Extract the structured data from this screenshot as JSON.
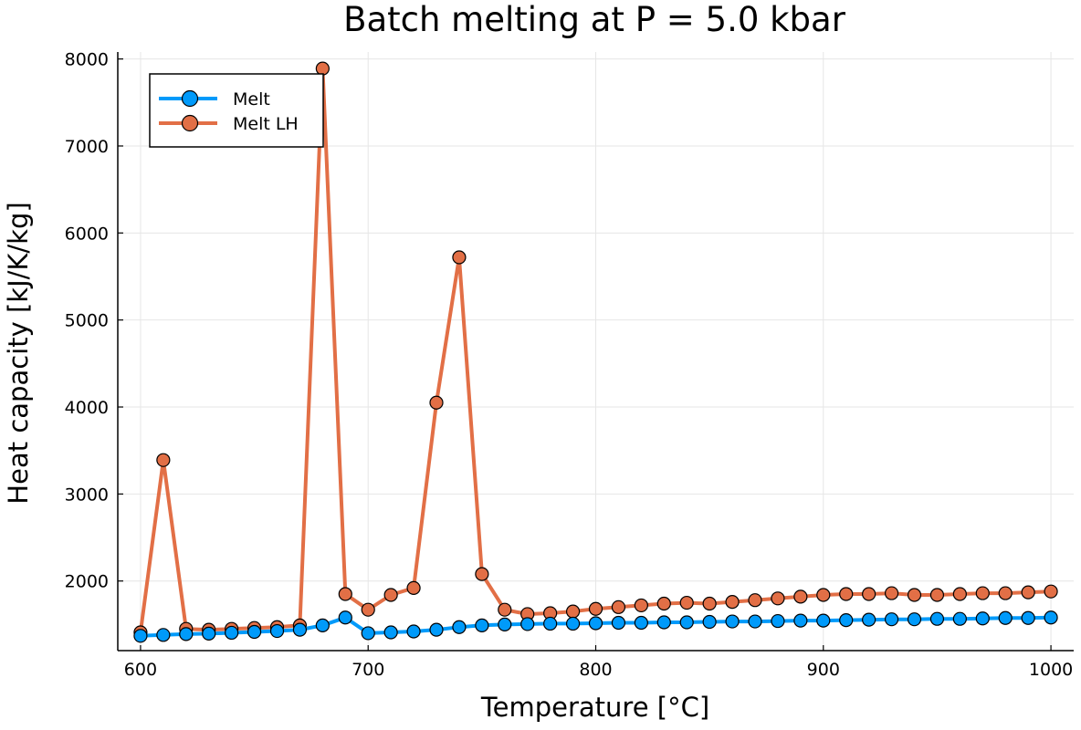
{
  "chart_data": {
    "type": "line",
    "title": "Batch melting at P = 5.0 kbar",
    "xlabel": "Temperature [°C]",
    "ylabel": "Heat capacity [kJ/K/kg]",
    "xlim": [
      590,
      1010
    ],
    "ylim": [
      1200,
      8080
    ],
    "xticks": [
      600,
      700,
      800,
      900,
      1000
    ],
    "yticks": [
      2000,
      3000,
      4000,
      5000,
      6000,
      7000,
      8000
    ],
    "grid": true,
    "legend_position": "top-left",
    "x": [
      600,
      610,
      620,
      630,
      640,
      650,
      660,
      670,
      680,
      690,
      700,
      710,
      720,
      730,
      740,
      750,
      760,
      770,
      780,
      790,
      800,
      810,
      820,
      830,
      840,
      850,
      860,
      870,
      880,
      890,
      900,
      910,
      920,
      930,
      940,
      950,
      960,
      970,
      980,
      990,
      1000
    ],
    "series": [
      {
        "name": "Melt",
        "color": "#009AFA",
        "values": [
          1370,
          1380,
          1390,
          1395,
          1405,
          1415,
          1425,
          1440,
          1490,
          1580,
          1400,
          1410,
          1420,
          1440,
          1470,
          1490,
          1500,
          1505,
          1510,
          1510,
          1515,
          1520,
          1520,
          1525,
          1525,
          1530,
          1535,
          1535,
          1540,
          1545,
          1545,
          1550,
          1555,
          1560,
          1560,
          1565,
          1565,
          1570,
          1575,
          1575,
          1580
        ]
      },
      {
        "name": "Melt LH",
        "color": "#E26F46",
        "values": [
          1410,
          3390,
          1450,
          1440,
          1450,
          1460,
          1470,
          1490,
          7890,
          1850,
          1670,
          1840,
          1920,
          4050,
          5720,
          2080,
          1670,
          1620,
          1630,
          1650,
          1680,
          1700,
          1720,
          1740,
          1750,
          1740,
          1760,
          1780,
          1800,
          1820,
          1840,
          1850,
          1850,
          1860,
          1840,
          1840,
          1850,
          1860,
          1860,
          1870,
          1880
        ]
      }
    ]
  }
}
